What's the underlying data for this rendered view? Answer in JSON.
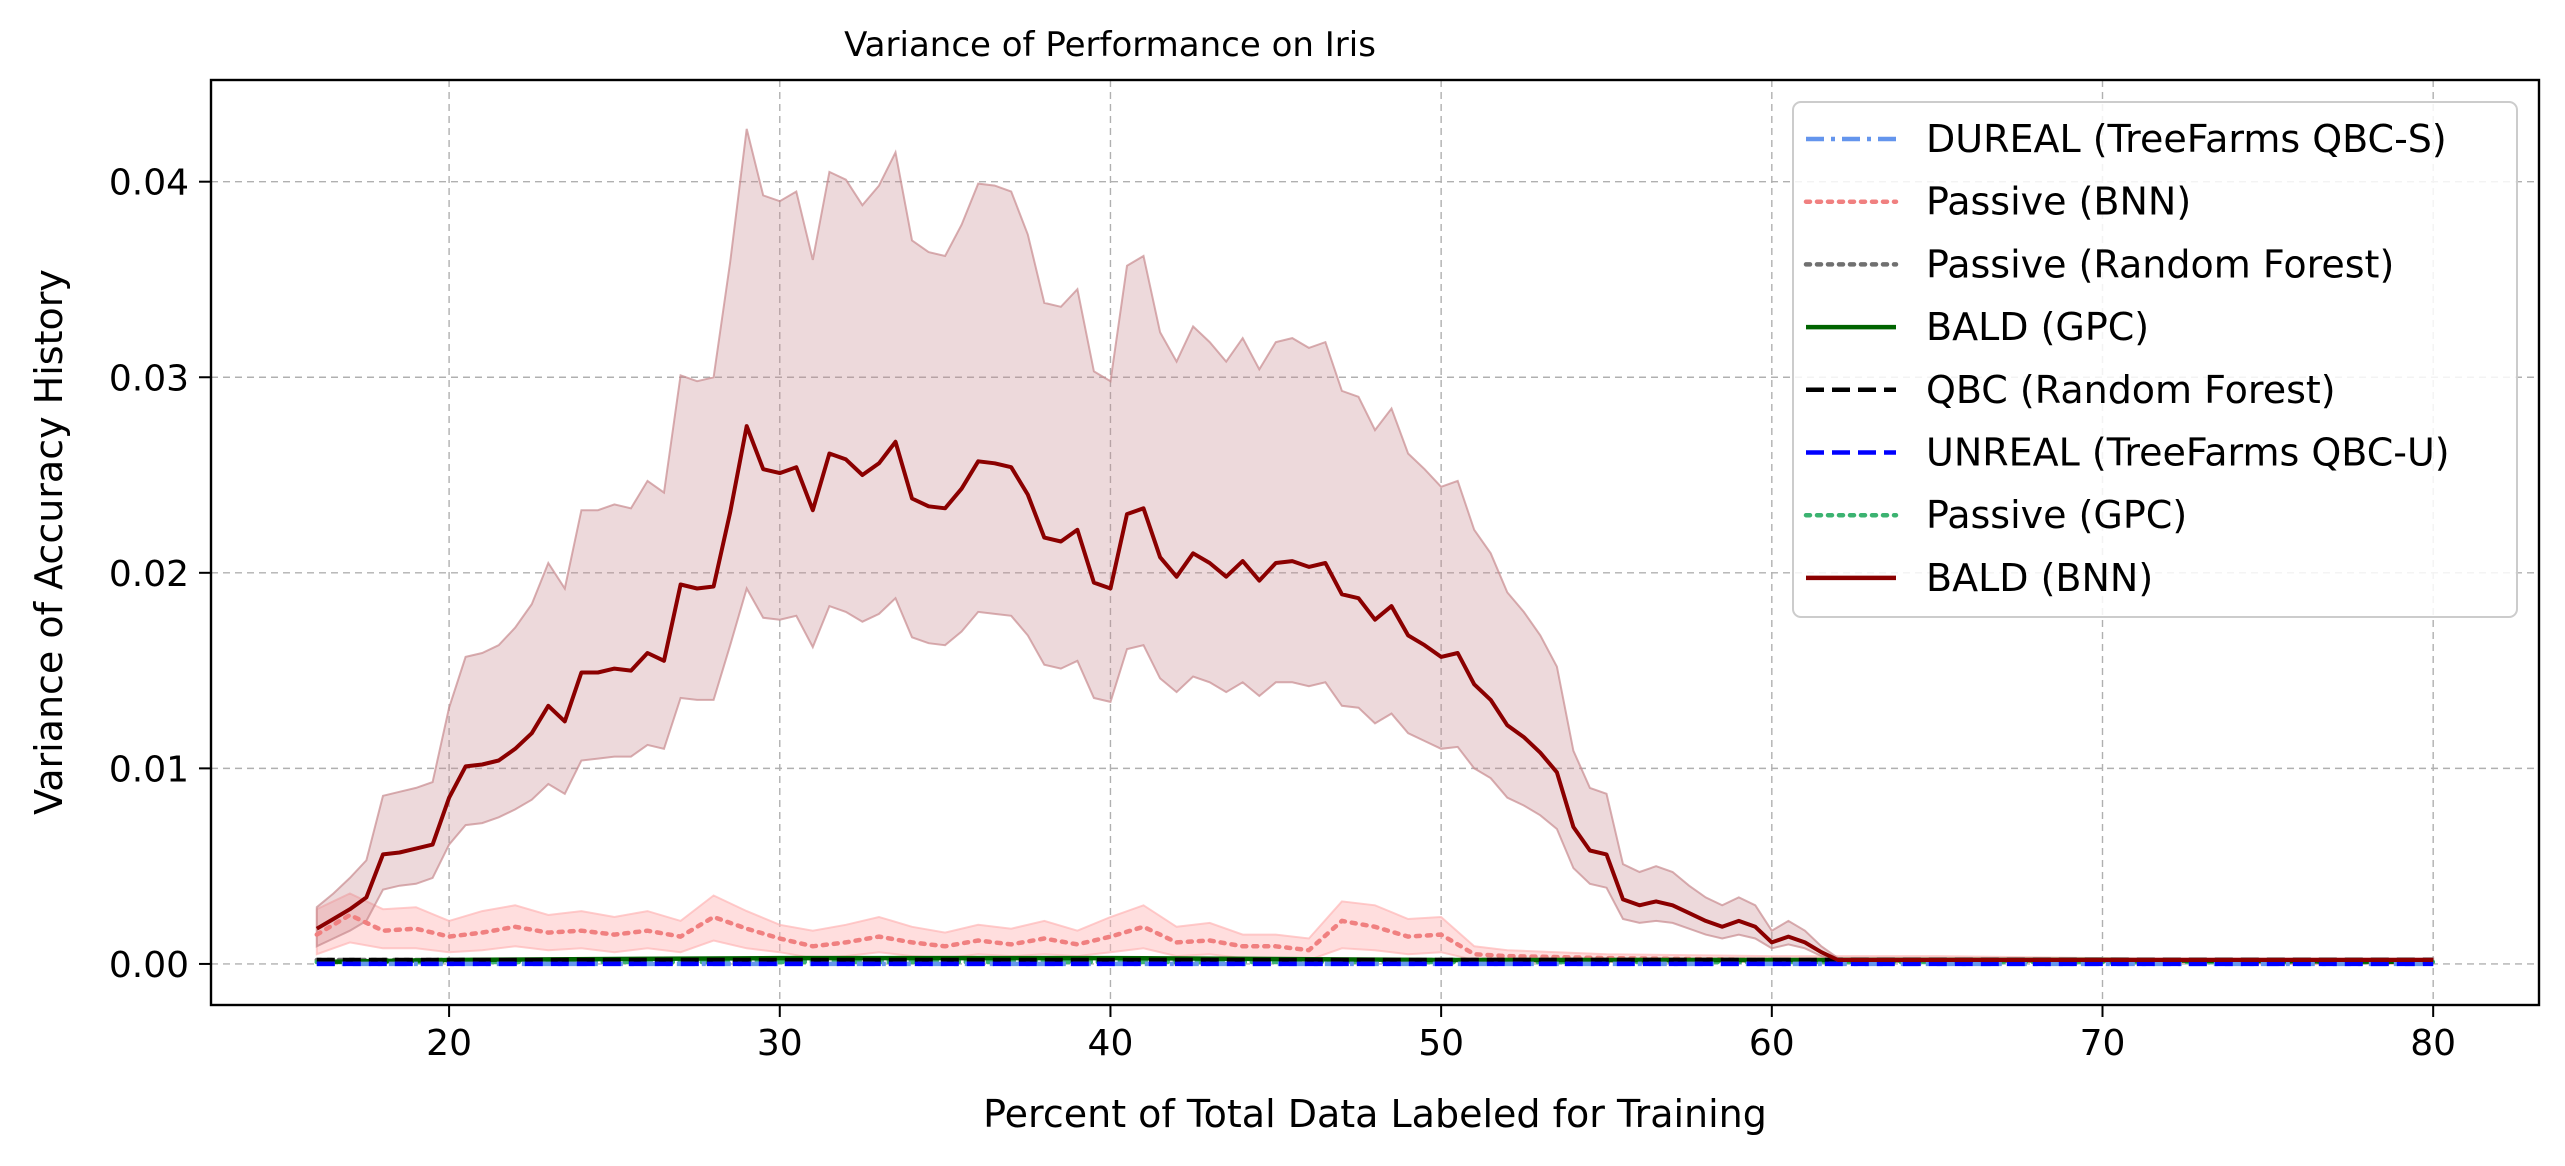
{
  "chart_data": {
    "type": "line",
    "title": "Variance of Performance on Iris",
    "xlabel": "Percent of Total Data Labeled for Training",
    "ylabel": "Variance of Accuracy History",
    "xlim": [
      12.8,
      83.2
    ],
    "ylim": [
      -0.0021,
      0.0452
    ],
    "xticks": [
      20,
      30,
      40,
      50,
      60,
      70,
      80
    ],
    "xtick_labels": [
      "20",
      "30",
      "40",
      "50",
      "60",
      "70",
      "80"
    ],
    "yticks": [
      0.0,
      0.01,
      0.02,
      0.03,
      0.04
    ],
    "ytick_labels": [
      "0.00",
      "0.01",
      "0.02",
      "0.03",
      "0.04"
    ],
    "grid": true,
    "legend_position": "top-right",
    "series": [
      {
        "name": "DUREAL (TreeFarms QBC-S)",
        "color": "#6495ED",
        "style": "dashdot",
        "x": [
          16,
          20,
          30,
          40,
          50,
          60,
          70,
          80
        ],
        "y": [
          0.0,
          0.0,
          0.0,
          0.0,
          0.0,
          0.0,
          0.0,
          0.0
        ]
      },
      {
        "name": "Passive (BNN)",
        "color": "#F08080",
        "style": "dotted",
        "band_color": "#FFB6B6",
        "x": [
          16,
          17,
          18,
          19,
          20,
          21,
          22,
          23,
          24,
          25,
          26,
          27,
          28,
          29,
          30,
          31,
          32,
          33,
          34,
          35,
          36,
          37,
          38,
          39,
          40,
          41,
          42,
          43,
          44,
          45,
          46,
          47,
          48,
          49,
          50,
          51,
          52,
          55,
          60,
          65,
          70,
          75,
          80
        ],
        "y": [
          0.0015,
          0.0025,
          0.0017,
          0.0018,
          0.0014,
          0.0016,
          0.0019,
          0.0016,
          0.0017,
          0.0015,
          0.0017,
          0.0014,
          0.0024,
          0.0018,
          0.0013,
          0.0009,
          0.0011,
          0.0014,
          0.0011,
          0.0009,
          0.0012,
          0.001,
          0.0013,
          0.001,
          0.0014,
          0.0019,
          0.0011,
          0.0012,
          0.0009,
          0.0009,
          0.0007,
          0.0022,
          0.0019,
          0.0014,
          0.0015,
          0.0005,
          0.0004,
          0.0003,
          0.0002,
          0.0002,
          0.0002,
          0.0001,
          0.0001
        ],
        "lower": [
          0.0005,
          0.0011,
          0.0008,
          0.0008,
          0.0006,
          0.0007,
          0.0009,
          0.0007,
          0.0008,
          0.0006,
          0.0008,
          0.0006,
          0.0012,
          0.0008,
          0.0006,
          0.0003,
          0.0004,
          0.0006,
          0.0004,
          0.0003,
          0.0005,
          0.0004,
          0.0005,
          0.0004,
          0.0006,
          0.0008,
          0.0004,
          0.0005,
          0.0003,
          0.0003,
          0.0002,
          0.0008,
          0.0007,
          0.0005,
          0.0006,
          0.0002,
          0.0001,
          0.0001,
          0.0001,
          0.0001,
          0.0001,
          0.0,
          0.0
        ],
        "upper": [
          0.0028,
          0.0036,
          0.0028,
          0.0029,
          0.0022,
          0.0027,
          0.003,
          0.0025,
          0.0027,
          0.0024,
          0.0027,
          0.0022,
          0.0035,
          0.0027,
          0.002,
          0.0017,
          0.002,
          0.0024,
          0.0019,
          0.0016,
          0.002,
          0.0018,
          0.0022,
          0.0017,
          0.0024,
          0.003,
          0.0019,
          0.0021,
          0.0015,
          0.0015,
          0.0013,
          0.0032,
          0.003,
          0.0023,
          0.0024,
          0.0009,
          0.0007,
          0.0005,
          0.0004,
          0.0004,
          0.0003,
          0.0002,
          0.0002
        ]
      },
      {
        "name": "Passive (Random Forest)",
        "color": "#707070",
        "style": "dotted",
        "x": [
          16,
          20,
          30,
          40,
          50,
          60,
          70,
          80
        ],
        "y": [
          0.0002,
          0.0002,
          0.0002,
          0.0002,
          0.0002,
          0.0002,
          0.0001,
          0.0001
        ]
      },
      {
        "name": "BALD (GPC)",
        "color": "#006400",
        "style": "solid",
        "x": [
          16,
          20,
          30,
          40,
          50,
          60,
          70,
          80
        ],
        "y": [
          0.0001,
          0.0002,
          0.0003,
          0.0003,
          0.0002,
          0.0002,
          0.0002,
          0.0001
        ]
      },
      {
        "name": "QBC (Random Forest)",
        "color": "#000000",
        "style": "dashed",
        "x": [
          16,
          20,
          30,
          40,
          50,
          60,
          70,
          80
        ],
        "y": [
          0.0002,
          0.0002,
          0.0002,
          0.0002,
          0.0002,
          0.0002,
          0.0002,
          0.0002
        ]
      },
      {
        "name": "UNREAL (TreeFarms QBC-U)",
        "color": "#0000FF",
        "style": "dashed",
        "x": [
          16,
          20,
          30,
          40,
          50,
          60,
          70,
          80
        ],
        "y": [
          0.0,
          0.0,
          0.0,
          0.0,
          0.0,
          0.0,
          0.0,
          0.0
        ]
      },
      {
        "name": "Passive (GPC)",
        "color": "#3CB371",
        "style": "dotted",
        "x": [
          16,
          20,
          30,
          40,
          50,
          60,
          70,
          80
        ],
        "y": [
          0.0001,
          0.0001,
          0.0001,
          0.0001,
          0.0001,
          0.0001,
          0.0001,
          0.0001
        ]
      },
      {
        "name": "BALD (BNN)",
        "color": "#8B0000",
        "style": "solid",
        "band_color": "#C88A8F",
        "x": [
          16,
          16.5,
          17,
          17.5,
          18,
          18.5,
          19,
          19.5,
          20,
          20.5,
          21,
          21.5,
          22,
          22.5,
          23,
          23.5,
          24,
          24.5,
          25,
          25.5,
          26,
          26.5,
          27,
          27.5,
          28,
          28.5,
          29,
          29.5,
          30,
          30.5,
          31,
          31.5,
          32,
          32.5,
          33,
          33.5,
          34,
          34.5,
          35,
          35.5,
          36,
          36.5,
          37,
          37.5,
          38,
          38.5,
          39,
          39.5,
          40,
          40.5,
          41,
          41.5,
          42,
          42.5,
          43,
          43.5,
          44,
          44.5,
          45,
          45.5,
          46,
          46.5,
          47,
          47.5,
          48,
          48.5,
          49,
          49.5,
          50,
          50.5,
          51,
          51.5,
          52,
          52.5,
          53,
          53.5,
          54,
          54.5,
          55,
          55.5,
          56,
          56.5,
          57,
          57.5,
          58,
          58.5,
          59,
          59.5,
          60,
          60.5,
          61,
          61.5,
          62,
          62.5,
          63,
          63.5,
          64,
          64.5,
          65,
          65.5,
          66,
          66.5,
          67,
          67.5,
          68,
          68.5,
          69,
          69.5,
          70,
          70.5,
          71,
          71.5,
          72,
          72.5,
          73,
          73.5,
          74,
          74.5,
          75,
          75.5,
          76,
          76.5,
          77,
          77.5,
          78,
          78.5,
          79,
          79.5,
          80
        ],
        "y": [
          0.0018,
          0.0023,
          0.0028,
          0.0034,
          0.0056,
          0.0057,
          0.0059,
          0.0061,
          0.0085,
          0.0101,
          0.0102,
          0.0104,
          0.011,
          0.0118,
          0.0132,
          0.0124,
          0.0149,
          0.0149,
          0.0151,
          0.015,
          0.0159,
          0.0155,
          0.0194,
          0.0192,
          0.0193,
          0.0231,
          0.0275,
          0.0253,
          0.0251,
          0.0254,
          0.0232,
          0.0261,
          0.0258,
          0.025,
          0.0256,
          0.0267,
          0.0238,
          0.0234,
          0.0233,
          0.0243,
          0.0257,
          0.0256,
          0.0254,
          0.024,
          0.0218,
          0.0216,
          0.0222,
          0.0195,
          0.0192,
          0.023,
          0.0233,
          0.0208,
          0.0198,
          0.021,
          0.0205,
          0.0198,
          0.0206,
          0.0196,
          0.0205,
          0.0206,
          0.0203,
          0.0205,
          0.0189,
          0.0187,
          0.0176,
          0.0183,
          0.0168,
          0.0163,
          0.0157,
          0.0159,
          0.0143,
          0.0135,
          0.0122,
          0.0116,
          0.0108,
          0.0098,
          0.007,
          0.0058,
          0.0056,
          0.0033,
          0.003,
          0.0032,
          0.003,
          0.0026,
          0.0022,
          0.0019,
          0.0022,
          0.0019,
          0.0011,
          0.0014,
          0.0011,
          0.0006,
          0.0002,
          0.0002,
          0.0002,
          0.0002,
          0.0002,
          0.0002,
          0.0002,
          0.0002,
          0.0002,
          0.0002,
          0.0002,
          0.0002,
          0.0002,
          0.0002,
          0.0002,
          0.0002,
          0.0002,
          0.0002,
          0.0002,
          0.0002,
          0.0002,
          0.0002,
          0.0002,
          0.0002,
          0.0002,
          0.0002,
          0.0002,
          0.0002,
          0.0002,
          0.0002,
          0.0002,
          0.0002,
          0.0002,
          0.0002,
          0.0002,
          0.0002,
          0.0002
        ],
        "lower": [
          0.0009,
          0.0013,
          0.0017,
          0.0022,
          0.0038,
          0.004,
          0.0041,
          0.0044,
          0.0061,
          0.0071,
          0.0072,
          0.0075,
          0.0079,
          0.0084,
          0.0092,
          0.0087,
          0.0104,
          0.0105,
          0.0106,
          0.0106,
          0.0112,
          0.011,
          0.0136,
          0.0135,
          0.0135,
          0.0163,
          0.0192,
          0.0177,
          0.0176,
          0.0178,
          0.0162,
          0.0183,
          0.018,
          0.0175,
          0.0179,
          0.0187,
          0.0167,
          0.0164,
          0.0163,
          0.017,
          0.018,
          0.0179,
          0.0178,
          0.0168,
          0.0153,
          0.0151,
          0.0155,
          0.0136,
          0.0134,
          0.0161,
          0.0163,
          0.0146,
          0.0139,
          0.0147,
          0.0144,
          0.0139,
          0.0144,
          0.0137,
          0.0144,
          0.0144,
          0.0142,
          0.0144,
          0.0132,
          0.0131,
          0.0123,
          0.0128,
          0.0118,
          0.0114,
          0.011,
          0.0111,
          0.01,
          0.0095,
          0.0085,
          0.0081,
          0.0076,
          0.0069,
          0.0049,
          0.0041,
          0.0039,
          0.0023,
          0.0021,
          0.0022,
          0.0021,
          0.0018,
          0.0015,
          0.0013,
          0.0015,
          0.0013,
          0.0008,
          0.001,
          0.0008,
          0.0004,
          0.0001,
          0.0001,
          0.0001,
          0.0001,
          0.0001,
          0.0001,
          0.0001,
          0.0001,
          0.0001,
          0.0001,
          0.0001,
          0.0001,
          0.0001,
          0.0001,
          0.0001,
          0.0001,
          0.0001,
          0.0001,
          0.0001,
          0.0001,
          0.0001,
          0.0001,
          0.0001,
          0.0001,
          0.0001,
          0.0001,
          0.0001,
          0.0001,
          0.0001,
          0.0001,
          0.0001,
          0.0001,
          0.0001,
          0.0001,
          0.0001,
          0.0001,
          0.0001
        ],
        "upper": [
          0.0029,
          0.0036,
          0.0044,
          0.0053,
          0.0086,
          0.0088,
          0.009,
          0.0093,
          0.0131,
          0.0157,
          0.0159,
          0.0163,
          0.0172,
          0.0184,
          0.0205,
          0.0192,
          0.0232,
          0.0232,
          0.0235,
          0.0233,
          0.0247,
          0.0241,
          0.0301,
          0.0298,
          0.03,
          0.0359,
          0.0427,
          0.0393,
          0.039,
          0.0395,
          0.036,
          0.0405,
          0.0401,
          0.0388,
          0.0398,
          0.0415,
          0.037,
          0.0364,
          0.0362,
          0.0378,
          0.0399,
          0.0398,
          0.0395,
          0.0373,
          0.0338,
          0.0336,
          0.0345,
          0.0303,
          0.0298,
          0.0357,
          0.0362,
          0.0323,
          0.0308,
          0.0326,
          0.0318,
          0.0308,
          0.032,
          0.0304,
          0.0318,
          0.032,
          0.0315,
          0.0318,
          0.0293,
          0.029,
          0.0273,
          0.0284,
          0.0261,
          0.0253,
          0.0244,
          0.0247,
          0.0222,
          0.021,
          0.019,
          0.018,
          0.0168,
          0.0152,
          0.0109,
          0.009,
          0.0087,
          0.0051,
          0.0047,
          0.005,
          0.0047,
          0.004,
          0.0034,
          0.003,
          0.0034,
          0.003,
          0.0017,
          0.0022,
          0.0017,
          0.0009,
          0.0003,
          0.0003,
          0.0003,
          0.0003,
          0.0003,
          0.0003,
          0.0003,
          0.0003,
          0.0003,
          0.0003,
          0.0003,
          0.0003,
          0.0003,
          0.0003,
          0.0003,
          0.0003,
          0.0003,
          0.0003,
          0.0003,
          0.0003,
          0.0003,
          0.0003,
          0.0003,
          0.0003,
          0.0003,
          0.0003,
          0.0003,
          0.0003,
          0.0003,
          0.0003,
          0.0003,
          0.0003,
          0.0003,
          0.0003,
          0.0003,
          0.0003,
          0.0003
        ]
      }
    ],
    "draw_order": [
      "Passive (BNN)",
      "Passive (Random Forest)",
      "Passive (GPC)",
      "BALD (GPC)",
      "QBC (Random Forest)",
      "DUREAL (TreeFarms QBC-S)",
      "UNREAL (TreeFarms QBC-U)",
      "BALD (BNN)"
    ]
  }
}
